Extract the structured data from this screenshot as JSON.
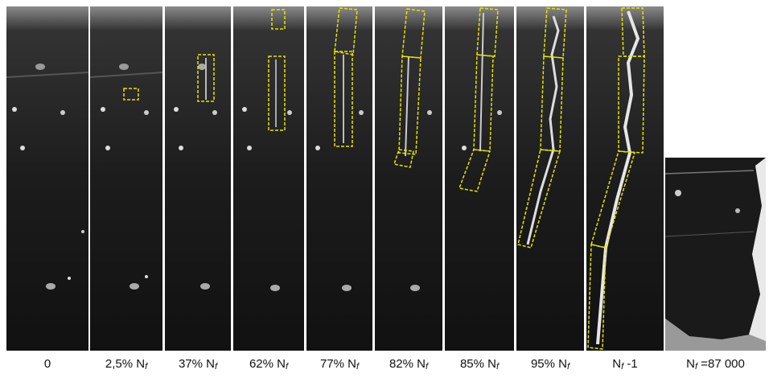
{
  "panels": [
    {
      "id": "p0",
      "label": "0"
    },
    {
      "id": "p1",
      "label": "2,5% N",
      "sub": "f"
    },
    {
      "id": "p2",
      "label": "37% N",
      "sub": "f"
    },
    {
      "id": "p3",
      "label": "62% N",
      "sub": "f"
    },
    {
      "id": "p4",
      "label": "77% N",
      "sub": "f"
    },
    {
      "id": "p5",
      "label": "82% N",
      "sub": "f"
    },
    {
      "id": "p6",
      "label": "85% N",
      "sub": "f"
    },
    {
      "id": "p7",
      "label": "95% N",
      "sub": "f"
    },
    {
      "id": "p8",
      "label": "N",
      "sub": "f",
      "suffix": " -1"
    },
    {
      "id": "p9",
      "label": "N",
      "sub": "f",
      "suffix": " =87 000"
    }
  ],
  "colors": {
    "highlight_box": "#e5e500",
    "background": "#ffffff",
    "image_dark": "#151515"
  }
}
